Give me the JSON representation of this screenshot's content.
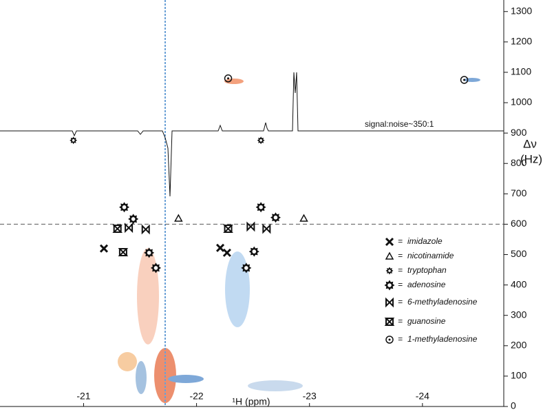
{
  "chart_data": {
    "type": "scatter",
    "xlabel": "¹H (ppm)",
    "ylabel": [
      "Δν",
      "(Hz)"
    ],
    "annotation": "signal:noise~350:1",
    "legend_separator": "=",
    "xlim": [
      -20.26,
      -24.72
    ],
    "xticks": [
      -21,
      -22,
      -23,
      -24
    ],
    "ylim": [
      0,
      1338
    ],
    "yticks": [
      0,
      100,
      200,
      300,
      400,
      500,
      600,
      700,
      800,
      900,
      1000,
      1100,
      1200,
      1300
    ],
    "reference_line": 600,
    "color": "#111111",
    "series": [
      {
        "name": "imidazole",
        "marker": "cross",
        "x": [
          -21.18,
          -22.21,
          -22.27
        ],
        "values": [
          520,
          522,
          506
        ]
      },
      {
        "name": "nicotinamide",
        "marker": "triangle",
        "x": [
          -21.84,
          -22.95
        ],
        "values": [
          619,
          619
        ]
      },
      {
        "name": "tryptophan",
        "marker": "gear-small",
        "x": [
          -20.91,
          -22.57
        ],
        "values": [
          876,
          876
        ]
      },
      {
        "name": "adenosine",
        "marker": "gear",
        "x": [
          -21.36,
          -21.44,
          -21.58,
          -21.64,
          -22.57,
          -22.7,
          -22.51,
          -22.44
        ],
        "values": [
          656,
          617,
          506,
          456,
          656,
          622,
          510,
          456
        ]
      },
      {
        "name": "6-methyladenosine",
        "marker": "bowtie",
        "x": [
          -21.4,
          -21.55,
          -22.48,
          -22.62
        ],
        "values": [
          588,
          583,
          592,
          585
        ]
      },
      {
        "name": "guanosine",
        "marker": "hourglass",
        "x": [
          -21.3,
          -21.35,
          -22.28
        ],
        "values": [
          585,
          508,
          585
        ]
      },
      {
        "name": "1-methyladenosine",
        "marker": "circle-dot",
        "x": [
          -22.28,
          -24.37
        ],
        "values": [
          1080,
          1075
        ]
      }
    ]
  }
}
